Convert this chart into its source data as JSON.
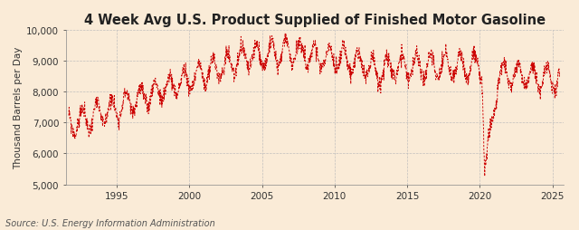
{
  "title": "4 Week Avg U.S. Product Supplied of Finished Motor Gasoline",
  "ylabel": "Thousand Barrels per Day",
  "source": "Source: U.S. Energy Information Administration",
  "background_color": "#faebd7",
  "line_color": "#cc0000",
  "ylim": [
    5000,
    10000
  ],
  "yticks": [
    5000,
    6000,
    7000,
    8000,
    9000,
    10000
  ],
  "xlim_start": 1991.5,
  "xlim_end": 2025.8,
  "xticks": [
    1995,
    2000,
    2005,
    2010,
    2015,
    2020,
    2025
  ],
  "title_fontsize": 10.5,
  "ylabel_fontsize": 7.5,
  "source_fontsize": 7,
  "tick_fontsize": 7.5
}
